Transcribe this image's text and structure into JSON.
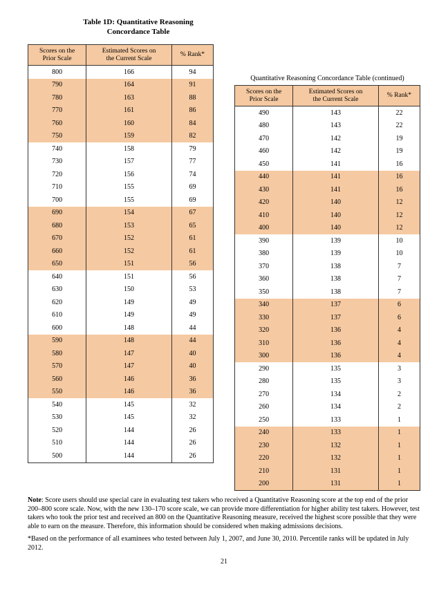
{
  "title_line1": "Table 1D: Quantitative Reasoning",
  "title_line2": "Concordance Table",
  "continued_label": "Quantitative Reasoning Concordance Table (continued)",
  "headers": {
    "col1_line1": "Scores on the",
    "col1_line2": "Prior Scale",
    "col2_line1": "Estimated Scores on",
    "col2_line2": "the Current Scale",
    "col3": "% Rank*"
  },
  "band_colors": {
    "band": "#f5c9a1",
    "plain": "#ffffff"
  },
  "left_rows": [
    {
      "prior": "800",
      "cur": "166",
      "rank": "94"
    },
    {
      "prior": "790",
      "cur": "164",
      "rank": "91"
    },
    {
      "prior": "780",
      "cur": "163",
      "rank": "88"
    },
    {
      "prior": "770",
      "cur": "161",
      "rank": "86"
    },
    {
      "prior": "760",
      "cur": "160",
      "rank": "84"
    },
    {
      "prior": "750",
      "cur": "159",
      "rank": "82"
    },
    {
      "prior": "740",
      "cur": "158",
      "rank": "79"
    },
    {
      "prior": "730",
      "cur": "157",
      "rank": "77"
    },
    {
      "prior": "720",
      "cur": "156",
      "rank": "74"
    },
    {
      "prior": "710",
      "cur": "155",
      "rank": "69"
    },
    {
      "prior": "700",
      "cur": "155",
      "rank": "69"
    },
    {
      "prior": "690",
      "cur": "154",
      "rank": "67"
    },
    {
      "prior": "680",
      "cur": "153",
      "rank": "65"
    },
    {
      "prior": "670",
      "cur": "152",
      "rank": "61"
    },
    {
      "prior": "660",
      "cur": "152",
      "rank": "61"
    },
    {
      "prior": "650",
      "cur": "151",
      "rank": "56"
    },
    {
      "prior": "640",
      "cur": "151",
      "rank": "56"
    },
    {
      "prior": "630",
      "cur": "150",
      "rank": "53"
    },
    {
      "prior": "620",
      "cur": "149",
      "rank": "49"
    },
    {
      "prior": "610",
      "cur": "149",
      "rank": "49"
    },
    {
      "prior": "600",
      "cur": "148",
      "rank": "44"
    },
    {
      "prior": "590",
      "cur": "148",
      "rank": "44"
    },
    {
      "prior": "580",
      "cur": "147",
      "rank": "40"
    },
    {
      "prior": "570",
      "cur": "147",
      "rank": "40"
    },
    {
      "prior": "560",
      "cur": "146",
      "rank": "36"
    },
    {
      "prior": "550",
      "cur": "146",
      "rank": "36"
    },
    {
      "prior": "540",
      "cur": "145",
      "rank": "32"
    },
    {
      "prior": "530",
      "cur": "145",
      "rank": "32"
    },
    {
      "prior": "520",
      "cur": "144",
      "rank": "26"
    },
    {
      "prior": "510",
      "cur": "144",
      "rank": "26"
    },
    {
      "prior": "500",
      "cur": "144",
      "rank": "26"
    }
  ],
  "right_rows": [
    {
      "prior": "490",
      "cur": "143",
      "rank": "22"
    },
    {
      "prior": "480",
      "cur": "143",
      "rank": "22"
    },
    {
      "prior": "470",
      "cur": "142",
      "rank": "19"
    },
    {
      "prior": "460",
      "cur": "142",
      "rank": "19"
    },
    {
      "prior": "450",
      "cur": "141",
      "rank": "16"
    },
    {
      "prior": "440",
      "cur": "141",
      "rank": "16"
    },
    {
      "prior": "430",
      "cur": "141",
      "rank": "16"
    },
    {
      "prior": "420",
      "cur": "140",
      "rank": "12"
    },
    {
      "prior": "410",
      "cur": "140",
      "rank": "12"
    },
    {
      "prior": "400",
      "cur": "140",
      "rank": "12"
    },
    {
      "prior": "390",
      "cur": "139",
      "rank": "10"
    },
    {
      "prior": "380",
      "cur": "139",
      "rank": "10"
    },
    {
      "prior": "370",
      "cur": "138",
      "rank": "7"
    },
    {
      "prior": "360",
      "cur": "138",
      "rank": "7"
    },
    {
      "prior": "350",
      "cur": "138",
      "rank": "7"
    },
    {
      "prior": "340",
      "cur": "137",
      "rank": "6"
    },
    {
      "prior": "330",
      "cur": "137",
      "rank": "6"
    },
    {
      "prior": "320",
      "cur": "136",
      "rank": "4"
    },
    {
      "prior": "310",
      "cur": "136",
      "rank": "4"
    },
    {
      "prior": "300",
      "cur": "136",
      "rank": "4"
    },
    {
      "prior": "290",
      "cur": "135",
      "rank": "3"
    },
    {
      "prior": "280",
      "cur": "135",
      "rank": "3"
    },
    {
      "prior": "270",
      "cur": "134",
      "rank": "2"
    },
    {
      "prior": "260",
      "cur": "134",
      "rank": "2"
    },
    {
      "prior": "250",
      "cur": "133",
      "rank": "1"
    },
    {
      "prior": "240",
      "cur": "133",
      "rank": "1"
    },
    {
      "prior": "230",
      "cur": "132",
      "rank": "1"
    },
    {
      "prior": "220",
      "cur": "132",
      "rank": "1"
    },
    {
      "prior": "210",
      "cur": "131",
      "rank": "1"
    },
    {
      "prior": "200",
      "cur": "131",
      "rank": "1"
    }
  ],
  "note_label": "Note",
  "note_text": ": Score users should use special care in evaluating test takers who received a Quantitative Reasoning score at the top end of the prior 200–800 score scale. Now, with the new 130–170 score scale, we can provide more differentiation for higher ability test takers. However, test takers who took the prior test and received an 800 on the Quantitative Reasoning measure, received the highest score possible that they were able to earn on the measure. Therefore, this information should be considered when making admissions decisions.",
  "footnote": "*Based on the performance of all examinees who tested between July 1, 2007, and June 30, 2010. Percentile ranks will be updated in July 2012.",
  "page_number": "21",
  "left_band_pattern": [
    0,
    1,
    1,
    1,
    1,
    1,
    0,
    0,
    0,
    0,
    0,
    1,
    1,
    1,
    1,
    1,
    0,
    0,
    0,
    0,
    0,
    1,
    1,
    1,
    1,
    1,
    0,
    0,
    0,
    0,
    0
  ],
  "right_band_pattern": [
    0,
    0,
    0,
    0,
    0,
    1,
    1,
    1,
    1,
    1,
    0,
    0,
    0,
    0,
    0,
    1,
    1,
    1,
    1,
    1,
    0,
    0,
    0,
    0,
    0,
    1,
    1,
    1,
    1,
    1
  ]
}
